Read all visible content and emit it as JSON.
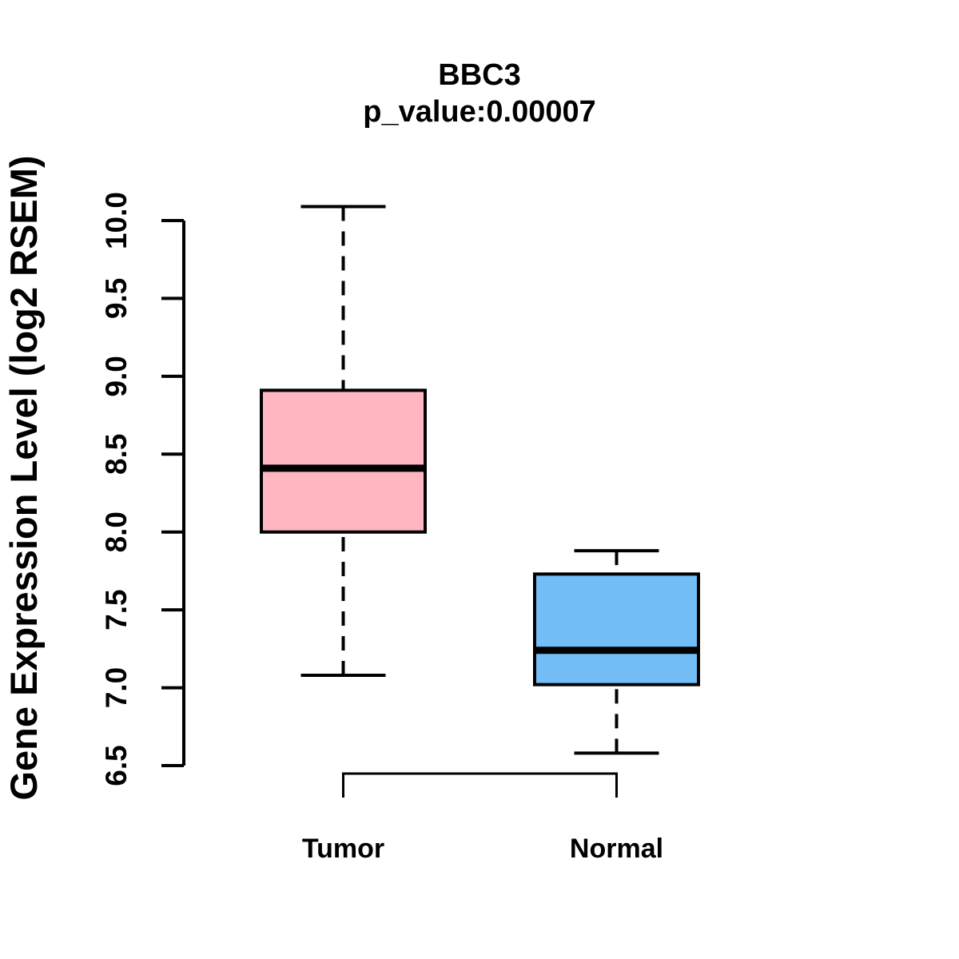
{
  "figure": {
    "background": "#FFFFFF",
    "text_color": "#000000",
    "line_color": "#000000"
  },
  "chart_data": {
    "type": "boxplot",
    "title": "BBC3",
    "subtitle": "p_value:0.00007",
    "ylabel": "Gene Expression Level (log2 RSEM)",
    "xlabel": "",
    "ylim": [
      6.5,
      10.0
    ],
    "yticks": [
      6.5,
      7.0,
      7.5,
      8.0,
      8.5,
      9.0,
      9.5,
      10.0
    ],
    "ytick_labels": [
      "6.5",
      "7.0",
      "7.5",
      "8.0",
      "8.5",
      "9.0",
      "9.5",
      "10.0"
    ],
    "grid": false,
    "legend": "none",
    "categories": [
      "Tumor",
      "Normal"
    ],
    "series": [
      {
        "name": "Tumor",
        "box_color": "#FFB6C1",
        "border_color": "#000000",
        "whisker_low": 7.08,
        "q1": 8.0,
        "median": 8.41,
        "q3": 8.91,
        "whisker_high": 10.09
      },
      {
        "name": "Normal",
        "box_color": "#74BEF7",
        "border_color": "#000000",
        "whisker_low": 6.58,
        "q1": 7.02,
        "median": 7.24,
        "q3": 7.73,
        "whisker_high": 7.88
      }
    ]
  }
}
